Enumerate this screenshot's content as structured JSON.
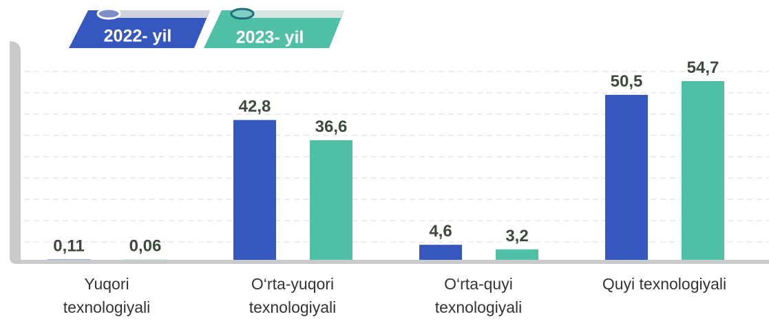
{
  "chart_data": {
    "type": "bar",
    "categories": [
      "Yuqori texnologiyali",
      "O‘rta-yuqori texnologiyali",
      "O‘rta-quyi texnologiyali",
      "Quyi texnologiyali"
    ],
    "series": [
      {
        "name": "2022- yil",
        "color": "#3656c0",
        "values": [
          0.11,
          42.8,
          4.6,
          50.5
        ],
        "value_labels": [
          "0,11",
          "42,8",
          "4,6",
          "50,5"
        ]
      },
      {
        "name": "2023- yil",
        "color": "#4fbfa5",
        "values": [
          0.06,
          36.6,
          3.2,
          54.7
        ],
        "value_labels": [
          "0,06",
          "36,6",
          "3,2",
          "54,7"
        ]
      }
    ]
  }
}
